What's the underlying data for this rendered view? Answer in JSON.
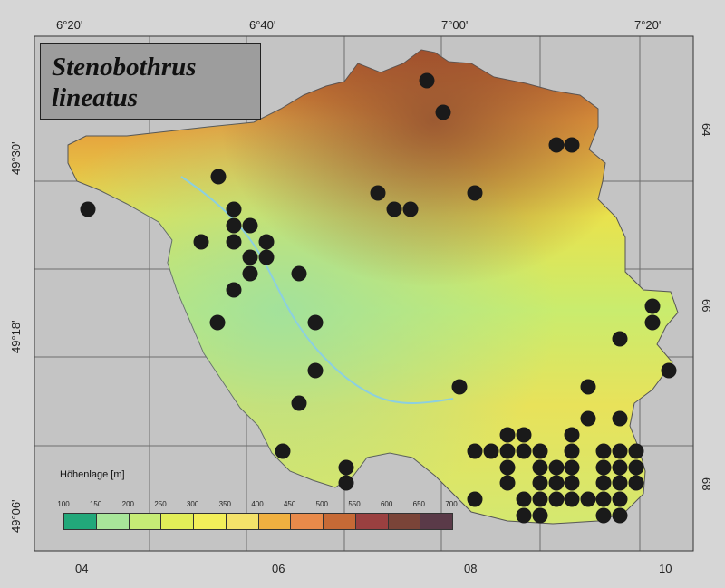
{
  "title_line1": "Stenobothrus",
  "title_line2": "lineatus",
  "top_labels": [
    "6°20'",
    "6°40'",
    "7°00'",
    "7°20'"
  ],
  "bottom_labels": [
    "04",
    "06",
    "08",
    "10"
  ],
  "left_labels": [
    "49°30'",
    "49°18'",
    "49°06'"
  ],
  "right_labels": [
    "64",
    "66",
    "68"
  ],
  "legend": {
    "title": "Höhenlage [m]",
    "ticks": [
      "100",
      "150",
      "200",
      "250",
      "300",
      "350",
      "400",
      "450",
      "500",
      "550",
      "600",
      "650",
      "700"
    ],
    "colors": [
      "#22a87a",
      "#a8e69a",
      "#c6ec76",
      "#e2ee58",
      "#f3ef5a",
      "#f4e26a",
      "#f0b040",
      "#e88a4a",
      "#c66a36",
      "#9a4040",
      "#7a4438",
      "#5a3a48"
    ]
  },
  "map": {
    "background": "#c4c4c4",
    "border_bg": "#d6d6d6",
    "dot_color": "#1a1a1a"
  },
  "records": [
    [
      471,
      89
    ],
    [
      489,
      124
    ],
    [
      614,
      160
    ],
    [
      631,
      160
    ],
    [
      241,
      195
    ],
    [
      97,
      231
    ],
    [
      417,
      213
    ],
    [
      435,
      231
    ],
    [
      453,
      231
    ],
    [
      524,
      213
    ],
    [
      258,
      231
    ],
    [
      258,
      249
    ],
    [
      276,
      249
    ],
    [
      222,
      267
    ],
    [
      258,
      267
    ],
    [
      294,
      267
    ],
    [
      276,
      284
    ],
    [
      294,
      284
    ],
    [
      276,
      302
    ],
    [
      330,
      302
    ],
    [
      258,
      320
    ],
    [
      720,
      338
    ],
    [
      720,
      356
    ],
    [
      240,
      356
    ],
    [
      348,
      356
    ],
    [
      684,
      374
    ],
    [
      348,
      409
    ],
    [
      738,
      409
    ],
    [
      507,
      427
    ],
    [
      649,
      427
    ],
    [
      330,
      445
    ],
    [
      649,
      462
    ],
    [
      684,
      462
    ],
    [
      560,
      480
    ],
    [
      578,
      480
    ],
    [
      631,
      480
    ],
    [
      524,
      498
    ],
    [
      542,
      498
    ],
    [
      560,
      498
    ],
    [
      578,
      498
    ],
    [
      596,
      498
    ],
    [
      631,
      498
    ],
    [
      666,
      498
    ],
    [
      684,
      498
    ],
    [
      702,
      498
    ],
    [
      312,
      498
    ],
    [
      560,
      516
    ],
    [
      596,
      516
    ],
    [
      614,
      516
    ],
    [
      631,
      516
    ],
    [
      666,
      516
    ],
    [
      684,
      516
    ],
    [
      702,
      516
    ],
    [
      382,
      516
    ],
    [
      382,
      533
    ],
    [
      560,
      533
    ],
    [
      596,
      533
    ],
    [
      614,
      533
    ],
    [
      631,
      533
    ],
    [
      666,
      533
    ],
    [
      684,
      533
    ],
    [
      702,
      533
    ],
    [
      524,
      551
    ],
    [
      578,
      551
    ],
    [
      596,
      551
    ],
    [
      614,
      551
    ],
    [
      631,
      551
    ],
    [
      649,
      551
    ],
    [
      666,
      551
    ],
    [
      684,
      551
    ],
    [
      578,
      569
    ],
    [
      596,
      569
    ],
    [
      666,
      569
    ],
    [
      684,
      569
    ]
  ]
}
